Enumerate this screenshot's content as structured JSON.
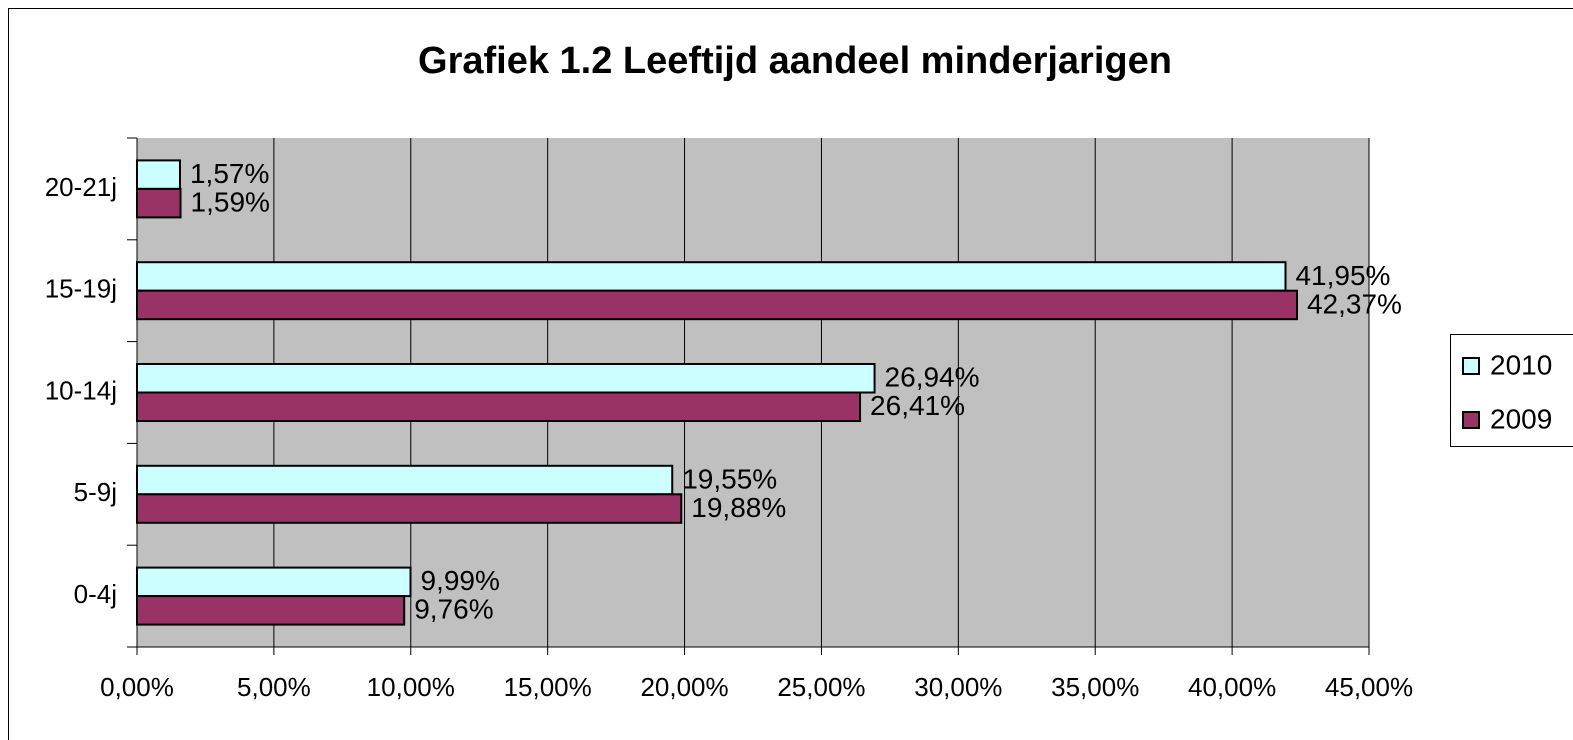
{
  "chart_data": {
    "type": "bar",
    "orientation": "horizontal",
    "title": "Grafiek 1.2 Leeftijd aandeel minderjarigen",
    "categories": [
      "0-4j",
      "5-9j",
      "10-14j",
      "15-19j",
      "20-21j"
    ],
    "series": [
      {
        "name": "2010",
        "color": "#ccffff",
        "values": [
          9.99,
          19.55,
          26.94,
          41.95,
          1.57
        ],
        "value_labels": [
          "9,99%",
          "19,55%",
          "26,94%",
          "41,95%",
          "1,57%"
        ]
      },
      {
        "name": "2009",
        "color": "#993366",
        "values": [
          9.76,
          19.88,
          26.41,
          42.37,
          1.59
        ],
        "value_labels": [
          "9,76%",
          "19,88%",
          "26,41%",
          "42,37%",
          "1,59%"
        ]
      }
    ],
    "xlim": [
      0,
      45
    ],
    "xticks": [
      {
        "value": 0,
        "label": "0,00%"
      },
      {
        "value": 5,
        "label": "5,00%"
      },
      {
        "value": 10,
        "label": "10,00%"
      },
      {
        "value": 15,
        "label": "15,00%"
      },
      {
        "value": 20,
        "label": "20,00%"
      },
      {
        "value": 25,
        "label": "25,00%"
      },
      {
        "value": 30,
        "label": "30,00%"
      },
      {
        "value": 35,
        "label": "35,00%"
      },
      {
        "value": 40,
        "label": "40,00%"
      },
      {
        "value": 45,
        "label": "45,00%"
      }
    ],
    "grid": true,
    "legend": "right"
  }
}
